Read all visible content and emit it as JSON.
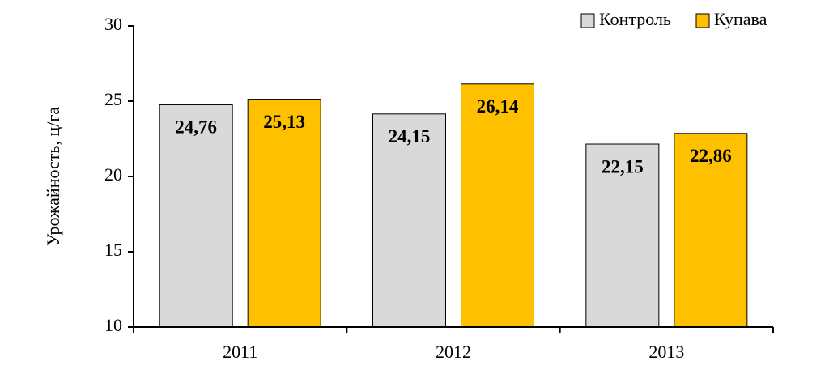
{
  "chart_data": {
    "type": "bar",
    "y_label": "Урожайность, ц/га",
    "categories": [
      "2011",
      "2012",
      "2013"
    ],
    "series": [
      {
        "name": "Контроль",
        "color": "#d9d9d9",
        "values": [
          24.76,
          24.15,
          22.15
        ],
        "value_labels": [
          "24,76",
          "24,15",
          "22,15"
        ]
      },
      {
        "name": "Купава",
        "color": "#ffc000",
        "values": [
          25.13,
          26.14,
          22.86
        ],
        "value_labels": [
          "25,13",
          "26,14",
          "22,86"
        ]
      }
    ],
    "ylim": [
      10,
      30
    ],
    "yticks": [
      10,
      15,
      20,
      25,
      30
    ],
    "legend": "upper right"
  }
}
